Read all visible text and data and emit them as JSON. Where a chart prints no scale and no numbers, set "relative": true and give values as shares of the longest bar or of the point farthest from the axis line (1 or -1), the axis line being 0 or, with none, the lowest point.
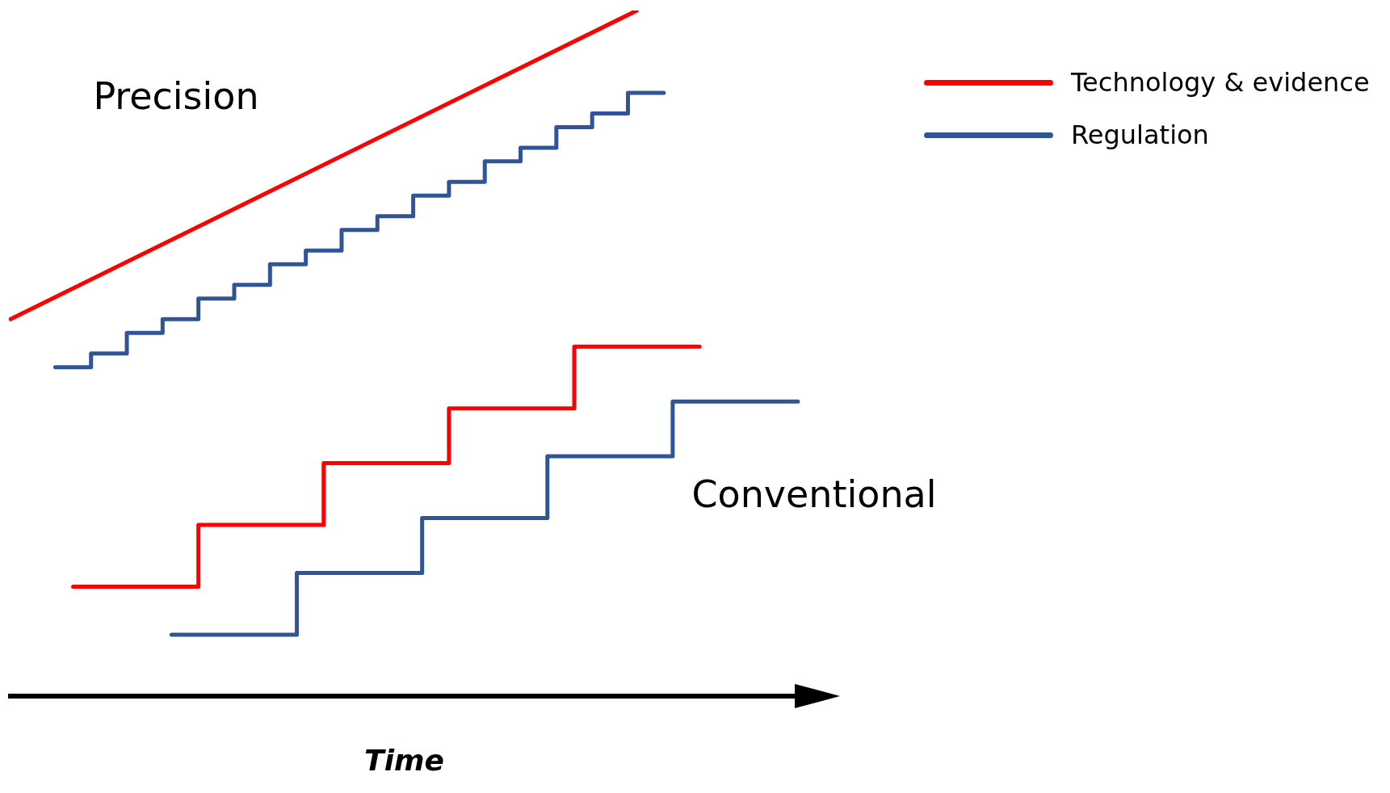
{
  "chart_data": {
    "type": "step",
    "relative": true,
    "xlabel": "Time",
    "legend": "top right",
    "marker": "none",
    "line_style": "solid",
    "annotations": [
      "Precision",
      "Conventional"
    ],
    "categories": [
      null,
      null,
      null,
      null,
      null,
      null,
      null,
      null,
      null,
      null,
      null,
      null,
      null,
      null,
      null,
      null,
      null,
      null,
      null,
      null,
      null,
      null,
      null,
      null,
      null,
      null,
      null,
      null,
      null,
      null,
      null,
      null,
      null,
      null,
      null,
      null,
      null,
      null,
      null,
      null,
      null,
      null,
      null,
      null,
      null,
      null,
      null,
      null,
      null,
      null,
      null,
      null,
      null,
      null,
      null,
      null,
      null,
      null,
      null,
      null,
      null,
      null,
      null,
      null,
      null,
      null,
      null,
      null,
      null,
      null,
      null,
      null,
      null,
      null,
      null,
      null,
      null,
      null,
      null,
      null,
      null,
      null,
      null,
      null,
      null,
      null,
      null,
      null,
      null
    ],
    "series": [
      {
        "name": "Technology & evidence",
        "type": "line",
        "color": "#ff0000",
        "values": [
          0.55,
          null,
          null,
          null,
          null,
          null,
          null,
          null,
          null,
          null,
          null,
          null,
          null,
          null,
          null,
          null,
          null,
          null,
          null,
          null,
          null,
          null,
          null,
          null,
          null,
          null,
          null,
          null,
          null,
          null,
          null,
          null,
          null,
          null,
          null,
          null,
          null,
          null,
          null,
          null,
          null,
          null,
          null,
          null,
          null,
          null,
          null,
          null,
          null,
          null,
          null,
          null,
          null,
          null,
          null,
          null,
          null,
          null,
          null,
          null,
          null,
          null,
          null,
          null,
          null,
          null,
          null,
          null,
          null,
          null,
          1,
          null,
          null,
          null,
          null,
          null,
          null,
          null,
          null,
          null,
          null,
          null,
          null,
          null,
          null,
          null,
          null,
          null,
          null
        ]
      },
      {
        "name": "Regulation",
        "color": "#2f5597",
        "values": [
          null,
          null,
          null,
          null,
          null,
          0.48,
          null,
          null,
          null,
          0.5,
          null,
          null,
          null,
          0.53,
          null,
          null,
          null,
          0.55,
          null,
          null,
          null,
          0.58,
          null,
          null,
          null,
          0.6,
          null,
          null,
          null,
          0.63,
          null,
          null,
          null,
          0.65,
          null,
          null,
          null,
          0.68,
          null,
          null,
          null,
          0.7,
          null,
          null,
          null,
          0.73,
          null,
          null,
          null,
          0.75,
          null,
          null,
          null,
          0.78,
          null,
          null,
          null,
          0.8,
          null,
          null,
          null,
          0.83,
          null,
          null,
          null,
          0.85,
          null,
          null,
          null,
          0.88,
          null,
          null,
          null,
          0.88,
          null,
          null,
          null,
          null,
          null,
          null,
          null,
          null,
          null,
          null,
          null,
          null,
          null,
          null,
          null
        ]
      },
      {
        "color": "#ff0000",
        "values": [
          null,
          null,
          null,
          null,
          null,
          null,
          null,
          0.16,
          null,
          null,
          null,
          null,
          null,
          null,
          null,
          null,
          null,
          null,
          null,
          null,
          null,
          0.25,
          null,
          null,
          null,
          null,
          null,
          null,
          null,
          null,
          null,
          null,
          null,
          null,
          null,
          0.34,
          null,
          null,
          null,
          null,
          null,
          null,
          null,
          null,
          null,
          null,
          null,
          null,
          null,
          0.42,
          null,
          null,
          null,
          null,
          null,
          null,
          null,
          null,
          null,
          null,
          null,
          null,
          null,
          0.51,
          null,
          null,
          null,
          null,
          null,
          null,
          null,
          null,
          null,
          null,
          null,
          null,
          null,
          0.51,
          null,
          null,
          null,
          null,
          null,
          null,
          null,
          null,
          null,
          null,
          null
        ]
      },
      {
        "color": "#2f5597",
        "values": [
          null,
          null,
          null,
          null,
          null,
          null,
          null,
          null,
          null,
          null,
          null,
          null,
          null,
          null,
          null,
          null,
          null,
          null,
          0.09,
          null,
          null,
          null,
          null,
          null,
          null,
          null,
          null,
          null,
          null,
          null,
          null,
          null,
          0.18,
          null,
          null,
          null,
          null,
          null,
          null,
          null,
          null,
          null,
          null,
          null,
          null,
          null,
          0.26,
          null,
          null,
          null,
          null,
          null,
          null,
          null,
          null,
          null,
          null,
          null,
          null,
          null,
          0.35,
          null,
          null,
          null,
          null,
          null,
          null,
          null,
          null,
          null,
          null,
          null,
          null,
          null,
          0.43,
          null,
          null,
          null,
          null,
          null,
          null,
          null,
          null,
          null,
          null,
          null,
          null,
          null,
          0.43
        ]
      }
    ]
  }
}
